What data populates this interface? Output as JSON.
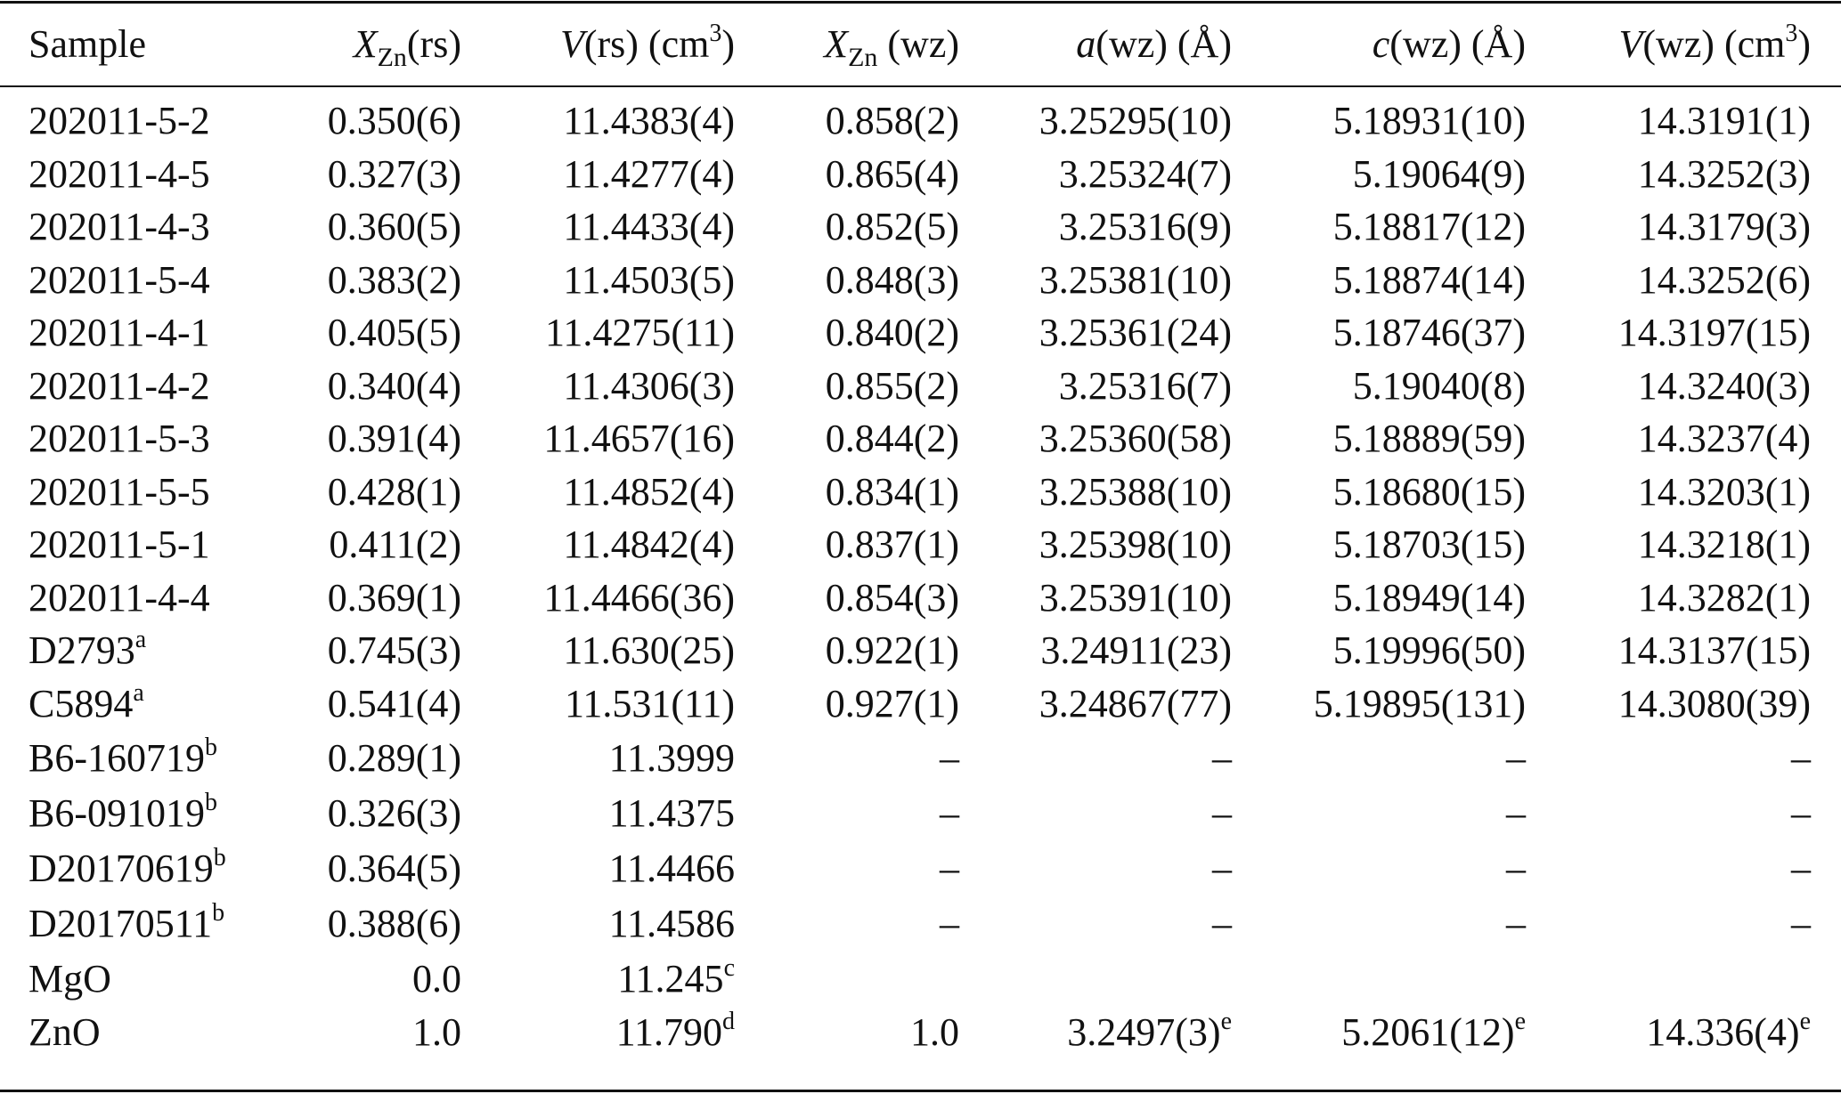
{
  "table": {
    "headers": [
      {
        "main": "Sample"
      },
      {
        "italic": "X",
        "sub": "Zn",
        "rest": "(rs)"
      },
      {
        "italic": "V",
        "rest": "(rs) (cm",
        "sup": "3",
        "after": ")"
      },
      {
        "italic": "X",
        "sub": "Zn",
        "rest": " (wz)"
      },
      {
        "italic": "a",
        "rest": "(wz) (Å)"
      },
      {
        "italic": "c",
        "rest": "(wz) (Å)"
      },
      {
        "italic": "V",
        "rest": "(wz) (cm",
        "sup": "3",
        "after": ")"
      }
    ],
    "rows": [
      {
        "sample": "202011-5-2",
        "xzn_rs": "0.350(6)",
        "v_rs": "11.4383(4)",
        "xzn_wz": "0.858(2)",
        "a_wz": "3.25295(10)",
        "c_wz": "5.18931(10)",
        "v_wz": "14.3191(1)"
      },
      {
        "sample": "202011-4-5",
        "xzn_rs": "0.327(3)",
        "v_rs": "11.4277(4)",
        "xzn_wz": "0.865(4)",
        "a_wz": "3.25324(7)",
        "c_wz": "5.19064(9)",
        "v_wz": "14.3252(3)"
      },
      {
        "sample": "202011-4-3",
        "xzn_rs": "0.360(5)",
        "v_rs": "11.4433(4)",
        "xzn_wz": "0.852(5)",
        "a_wz": "3.25316(9)",
        "c_wz": "5.18817(12)",
        "v_wz": "14.3179(3)"
      },
      {
        "sample": "202011-5-4",
        "xzn_rs": "0.383(2)",
        "v_rs": "11.4503(5)",
        "xzn_wz": "0.848(3)",
        "a_wz": "3.25381(10)",
        "c_wz": "5.18874(14)",
        "v_wz": "14.3252(6)"
      },
      {
        "sample": "202011-4-1",
        "xzn_rs": "0.405(5)",
        "v_rs": "11.4275(11)",
        "xzn_wz": "0.840(2)",
        "a_wz": "3.25361(24)",
        "c_wz": "5.18746(37)",
        "v_wz": "14.3197(15)"
      },
      {
        "sample": "202011-4-2",
        "xzn_rs": "0.340(4)",
        "v_rs": "11.4306(3)",
        "xzn_wz": "0.855(2)",
        "a_wz": "3.25316(7)",
        "c_wz": "5.19040(8)",
        "v_wz": "14.3240(3)"
      },
      {
        "sample": "202011-5-3",
        "xzn_rs": "0.391(4)",
        "v_rs": "11.4657(16)",
        "xzn_wz": "0.844(2)",
        "a_wz": "3.25360(58)",
        "c_wz": "5.18889(59)",
        "v_wz": "14.3237(4)"
      },
      {
        "sample": "202011-5-5",
        "xzn_rs": "0.428(1)",
        "v_rs": "11.4852(4)",
        "xzn_wz": "0.834(1)",
        "a_wz": "3.25388(10)",
        "c_wz": "5.18680(15)",
        "v_wz": "14.3203(1)"
      },
      {
        "sample": "202011-5-1",
        "xzn_rs": "0.411(2)",
        "v_rs": "11.4842(4)",
        "xzn_wz": "0.837(1)",
        "a_wz": "3.25398(10)",
        "c_wz": "5.18703(15)",
        "v_wz": "14.3218(1)"
      },
      {
        "sample": "202011-4-4",
        "xzn_rs": "0.369(1)",
        "v_rs": "11.4466(36)",
        "xzn_wz": "0.854(3)",
        "a_wz": "3.25391(10)",
        "c_wz": "5.18949(14)",
        "v_wz": "14.3282(1)"
      },
      {
        "sample": "D2793",
        "sample_sup": "a",
        "xzn_rs": "0.745(3)",
        "v_rs": "11.630(25)",
        "xzn_wz": "0.922(1)",
        "a_wz": "3.24911(23)",
        "c_wz": "5.19996(50)",
        "v_wz": "14.3137(15)"
      },
      {
        "sample": "C5894",
        "sample_sup": "a",
        "xzn_rs": "0.541(4)",
        "v_rs": "11.531(11)",
        "xzn_wz": "0.927(1)",
        "a_wz": "3.24867(77)",
        "c_wz": "5.19895(131)",
        "v_wz": "14.3080(39)"
      },
      {
        "sample": "B6-160719",
        "sample_sup": "b",
        "xzn_rs": "0.289(1)",
        "v_rs": "11.3999",
        "xzn_wz": "–",
        "a_wz": "–",
        "c_wz": "–",
        "v_wz": "–"
      },
      {
        "sample": "B6-091019",
        "sample_sup": "b",
        "xzn_rs": "0.326(3)",
        "v_rs": "11.4375",
        "xzn_wz": "–",
        "a_wz": "–",
        "c_wz": "–",
        "v_wz": "–"
      },
      {
        "sample": "D20170619",
        "sample_sup": "b",
        "xzn_rs": "0.364(5)",
        "v_rs": "11.4466",
        "xzn_wz": "–",
        "a_wz": "–",
        "c_wz": "–",
        "v_wz": "–"
      },
      {
        "sample": "D20170511",
        "sample_sup": "b",
        "xzn_rs": "0.388(6)",
        "v_rs": "11.4586",
        "xzn_wz": "–",
        "a_wz": "–",
        "c_wz": "–",
        "v_wz": "–"
      },
      {
        "sample": "MgO",
        "xzn_rs": "0.0",
        "v_rs": "11.245",
        "v_rs_sup": "c",
        "xzn_wz": "",
        "a_wz": "",
        "c_wz": "",
        "v_wz": ""
      },
      {
        "sample": "ZnO",
        "xzn_rs": "1.0",
        "v_rs": "11.790",
        "v_rs_sup": "d",
        "xzn_wz": "1.0",
        "a_wz": "3.2497(3)",
        "a_wz_sup": "e",
        "c_wz": "5.2061(12)",
        "c_wz_sup": "e",
        "v_wz": "14.336(4)",
        "v_wz_sup": "e"
      }
    ]
  }
}
